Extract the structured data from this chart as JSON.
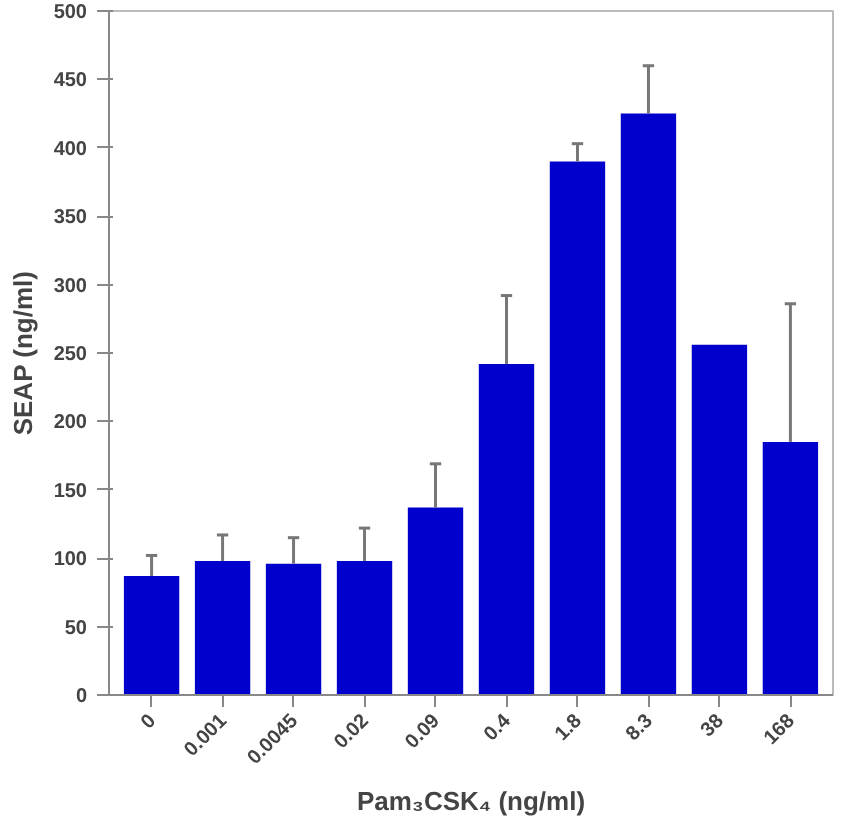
{
  "chart_data": {
    "type": "bar",
    "xlabel": "Pam₃CSK₄ (ng/ml)",
    "ylabel": "SEAP (ng/ml)",
    "categories": [
      "0",
      "0.001",
      "0.0045",
      "0.02",
      "0.09",
      "0.4",
      "1.8",
      "8.3",
      "38",
      "168"
    ],
    "values": [
      87,
      98,
      96,
      98,
      137,
      242,
      390,
      425,
      256,
      185
    ],
    "errors": [
      [
        87,
        102
      ],
      [
        98,
        117
      ],
      [
        96,
        115
      ],
      [
        98,
        122
      ],
      [
        137,
        169
      ],
      [
        242,
        292
      ],
      [
        390,
        403
      ],
      [
        425,
        460
      ],
      null,
      [
        185,
        286
      ]
    ],
    "color": "#0000cc",
    "ylim": [
      0,
      500
    ],
    "yticks": [
      0,
      50,
      100,
      150,
      200,
      250,
      300,
      350,
      400,
      450,
      500
    ],
    "grid": false
  }
}
